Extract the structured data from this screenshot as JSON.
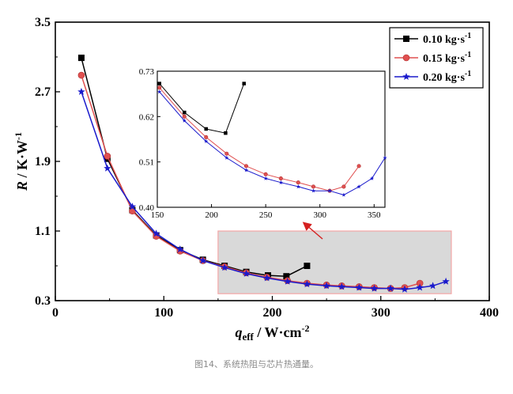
{
  "caption": "图14、系统热阻与芯片热通量。",
  "colors": {
    "highlight_fill": "#d9d9d9",
    "highlight_stroke": "#f4a6a6",
    "arrow": "#d42020"
  },
  "chart_data": [
    {
      "type": "line",
      "panel": "main",
      "xlabel_main": "q",
      "xlabel_sub": "eff",
      "xlabel_rest": " / W·cm",
      "xlabel_sup": "-2",
      "ylabel_main": "R",
      "ylabel_rest": " / K·W",
      "ylabel_sup": "-1",
      "xlim": [
        0,
        400
      ],
      "ylim": [
        0.3,
        3.5
      ],
      "xticks": [
        "0",
        "100",
        "200",
        "300",
        "400"
      ],
      "yticks": [
        "0.3",
        "1.1",
        "1.9",
        "2.7",
        "3.5"
      ],
      "legend_position": "top-right",
      "series": [
        {
          "name": "0.10 kg·s",
          "name_sup": "-1",
          "color": "#000000",
          "marker": "square",
          "x": [
            24,
            48,
            71,
            93,
            115,
            136,
            156,
            176,
            196,
            213,
            232
          ],
          "y": [
            3.09,
            1.93,
            1.34,
            1.05,
            0.88,
            0.77,
            0.7,
            0.63,
            0.59,
            0.58,
            0.7
          ]
        },
        {
          "name": "0.15 kg·s",
          "name_sup": "-1",
          "color": "#e05050",
          "marker": "circle",
          "x": [
            24,
            48,
            71,
            93,
            115,
            136,
            156,
            176,
            195,
            214,
            232,
            250,
            264,
            280,
            294,
            309,
            322,
            336
          ],
          "y": [
            2.89,
            1.96,
            1.33,
            1.04,
            0.87,
            0.76,
            0.69,
            0.62,
            0.57,
            0.53,
            0.5,
            0.48,
            0.47,
            0.46,
            0.45,
            0.44,
            0.45,
            0.5
          ]
        },
        {
          "name": "0.20 kg·s",
          "name_sup": "-1",
          "color": "#1a1acc",
          "marker": "star",
          "x": [
            24,
            48,
            71,
            93,
            115,
            136,
            156,
            176,
            195,
            214,
            232,
            250,
            264,
            280,
            294,
            309,
            322,
            336,
            348,
            360
          ],
          "y": [
            2.7,
            1.82,
            1.38,
            1.07,
            0.89,
            0.76,
            0.68,
            0.61,
            0.56,
            0.52,
            0.49,
            0.47,
            0.46,
            0.45,
            0.44,
            0.44,
            0.43,
            0.45,
            0.47,
            0.52
          ]
        }
      ]
    },
    {
      "type": "line",
      "panel": "inset",
      "xlim": [
        150,
        360
      ],
      "ylim": [
        0.4,
        0.73
      ],
      "xticks": [
        "150",
        "200",
        "250",
        "300",
        "350"
      ],
      "yticks": [
        "0.40",
        "0.51",
        "0.62",
        "0.73"
      ],
      "series": [
        {
          "color": "#000000",
          "marker": "square",
          "x": [
            152,
            175,
            195,
            213,
            230
          ],
          "y": [
            0.7,
            0.63,
            0.59,
            0.58,
            0.7
          ]
        },
        {
          "color": "#e05050",
          "marker": "circle",
          "x": [
            152,
            175,
            195,
            214,
            232,
            250,
            264,
            280,
            294,
            309,
            322,
            336
          ],
          "y": [
            0.69,
            0.62,
            0.57,
            0.53,
            0.5,
            0.48,
            0.47,
            0.46,
            0.45,
            0.44,
            0.45,
            0.5
          ]
        },
        {
          "color": "#1a1acc",
          "marker": "star",
          "x": [
            152,
            175,
            195,
            214,
            232,
            250,
            264,
            280,
            294,
            309,
            322,
            336,
            348,
            360
          ],
          "y": [
            0.68,
            0.61,
            0.56,
            0.52,
            0.49,
            0.47,
            0.46,
            0.45,
            0.44,
            0.44,
            0.43,
            0.45,
            0.47,
            0.52
          ]
        }
      ]
    }
  ],
  "highlight_region": {
    "xlim": [
      150,
      365
    ],
    "ylim": [
      0.38,
      1.1
    ]
  }
}
